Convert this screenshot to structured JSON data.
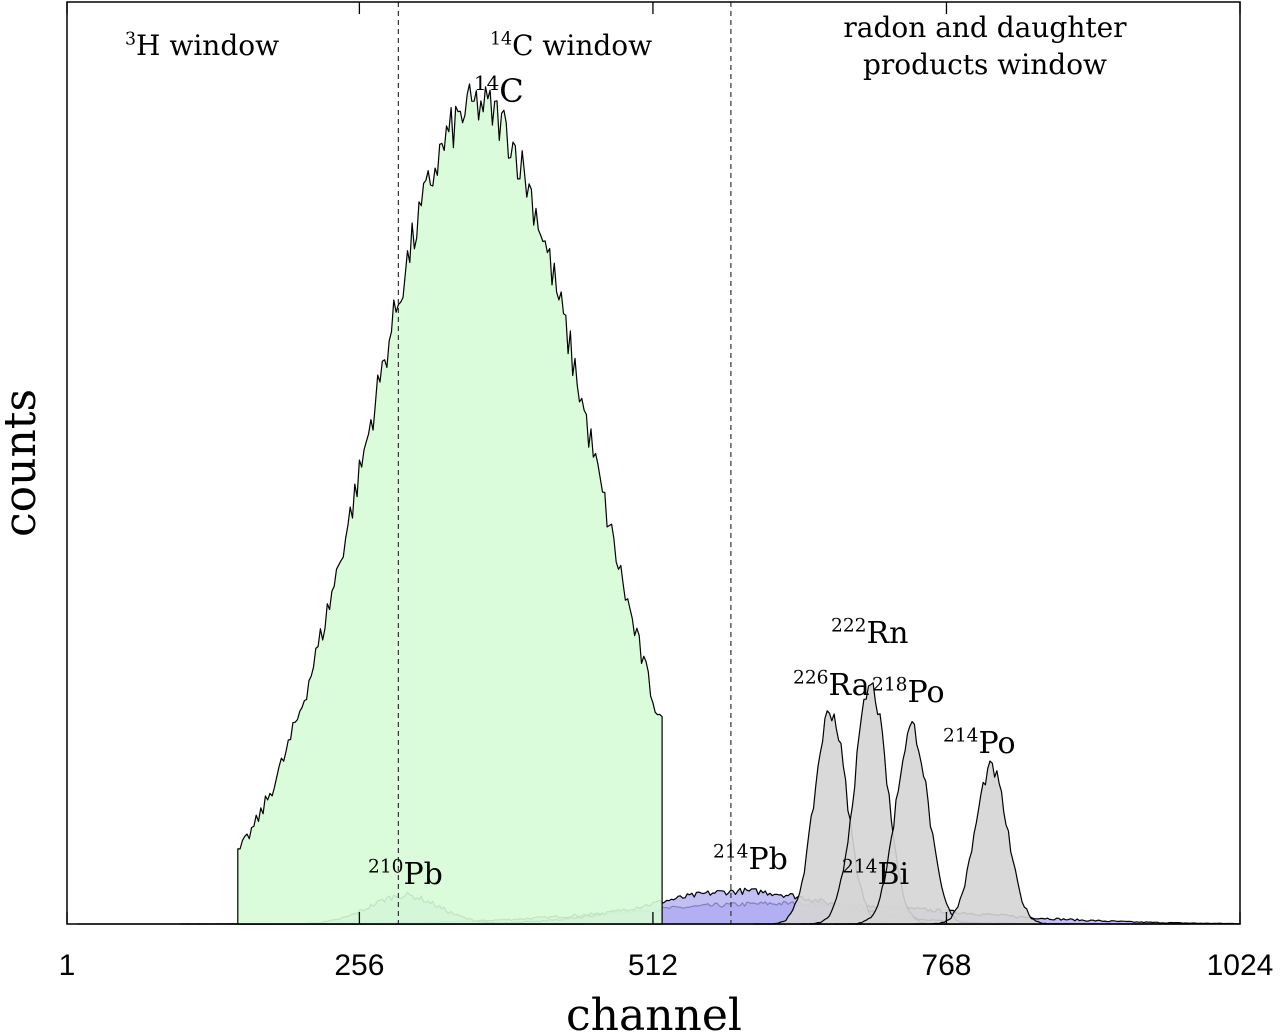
{
  "chart_data": {
    "type": "area",
    "xlabel": "channel",
    "ylabel": "counts",
    "xlim": [
      1,
      1024
    ],
    "ylim": [
      0,
      1.0
    ],
    "x_ticks": [
      1,
      256,
      512,
      768,
      1024
    ],
    "x_tick_labels": [
      "1",
      "256",
      "512",
      "768",
      "1024"
    ],
    "y_ticks": [],
    "grid": false,
    "colors": {
      "green_fill": "#d6fcd6",
      "blue_fill": "#aeaaf2",
      "gray_fill": "#d5d5d5",
      "line": "#000000"
    },
    "window_boundaries": [
      290,
      580
    ],
    "windows": [
      {
        "sup": "3",
        "text": "H window"
      },
      {
        "sup": "14",
        "text": "C window"
      },
      {
        "text_line1": "radon and daughter",
        "text_line2": "products window"
      }
    ],
    "series": [
      {
        "name": "14C",
        "label_sup": "14",
        "label_text": "C",
        "center": 360,
        "sigma": 95,
        "amplitude": 1.0,
        "range": [
          150,
          520
        ],
        "fill": "green",
        "noise": 0.03
      },
      {
        "name": "210Pb",
        "label_sup": "210",
        "label_text": "Pb",
        "center": 295,
        "sigma": 30,
        "amplitude": 0.035,
        "range": [
          150,
          450
        ],
        "fill": "blue",
        "noise": 0.004
      },
      {
        "name": "214Pb",
        "label_sup": "214",
        "label_text": "Pb",
        "center": 590,
        "sigma": 80,
        "amplitude": 0.04,
        "range": [
          100,
          980
        ],
        "fill": "blue",
        "noise": 0.004
      },
      {
        "name": "214Bi",
        "label_sup": "214",
        "label_text": "Bi",
        "center": 630,
        "sigma": 140,
        "amplitude": 0.025,
        "range": [
          10,
          1024
        ],
        "fill": "blue",
        "noise": 0.003
      },
      {
        "name": "226Ra",
        "label_sup": "226",
        "label_text": "Ra",
        "center": 667,
        "sigma": 14,
        "amplitude": 0.26,
        "range": [
          600,
          745
        ],
        "fill": "gray",
        "noise": 0.012
      },
      {
        "name": "222Rn",
        "label_sup": "222",
        "label_text": "Rn",
        "center": 702,
        "sigma": 14,
        "amplitude": 0.29,
        "range": [
          640,
          780
        ],
        "fill": "gray",
        "noise": 0.012
      },
      {
        "name": "218Po",
        "label_sup": "218",
        "label_text": "Po",
        "center": 738,
        "sigma": 14,
        "amplitude": 0.24,
        "range": [
          670,
          815
        ],
        "fill": "gray",
        "noise": 0.012
      },
      {
        "name": "214Po",
        "label_sup": "214",
        "label_text": "Po",
        "center": 807,
        "sigma": 14,
        "amplitude": 0.19,
        "range": [
          740,
          875
        ],
        "fill": "gray",
        "noise": 0.01
      }
    ]
  }
}
